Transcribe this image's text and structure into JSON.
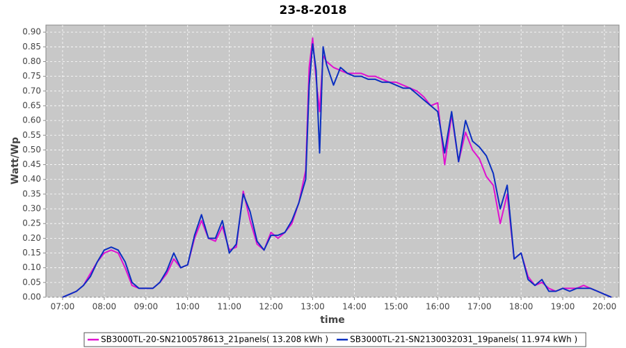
{
  "chart_data": {
    "type": "line",
    "title": "23-8-2018",
    "xlabel": "time",
    "ylabel": "Watt/Wp",
    "x": [
      "07:00",
      "07:10",
      "07:20",
      "07:30",
      "07:40",
      "07:50",
      "08:00",
      "08:10",
      "08:20",
      "08:30",
      "08:40",
      "08:50",
      "09:00",
      "09:10",
      "09:20",
      "09:30",
      "09:40",
      "09:50",
      "10:00",
      "10:10",
      "10:20",
      "10:30",
      "10:40",
      "10:50",
      "11:00",
      "11:10",
      "11:20",
      "11:30",
      "11:40",
      "11:50",
      "12:00",
      "12:10",
      "12:20",
      "12:30",
      "12:40",
      "12:50",
      "12:55",
      "13:00",
      "13:05",
      "13:10",
      "13:15",
      "13:20",
      "13:30",
      "13:40",
      "13:50",
      "14:00",
      "14:10",
      "14:20",
      "14:30",
      "14:40",
      "14:50",
      "15:00",
      "15:10",
      "15:20",
      "15:30",
      "15:40",
      "15:50",
      "16:00",
      "16:10",
      "16:20",
      "16:30",
      "16:40",
      "16:50",
      "17:00",
      "17:10",
      "17:20",
      "17:30",
      "17:40",
      "17:50",
      "18:00",
      "18:10",
      "18:20",
      "18:30",
      "18:40",
      "18:50",
      "19:00",
      "19:10",
      "19:20",
      "19:30",
      "19:40",
      "19:50",
      "20:00",
      "20:10"
    ],
    "series": [
      {
        "name": "SB3000TL-20-SN2100578613_21panels( 13.208 kWh )",
        "color": "#e010d0",
        "values": [
          0.0,
          0.01,
          0.02,
          0.04,
          0.08,
          0.12,
          0.15,
          0.16,
          0.15,
          0.1,
          0.04,
          0.03,
          0.03,
          0.03,
          0.05,
          0.08,
          0.13,
          0.1,
          0.11,
          0.2,
          0.26,
          0.2,
          0.19,
          0.24,
          0.16,
          0.17,
          0.36,
          0.26,
          0.18,
          0.16,
          0.22,
          0.2,
          0.22,
          0.25,
          0.32,
          0.43,
          0.78,
          0.88,
          0.74,
          0.63,
          0.82,
          0.8,
          0.78,
          0.77,
          0.76,
          0.76,
          0.76,
          0.75,
          0.75,
          0.74,
          0.73,
          0.73,
          0.72,
          0.71,
          0.7,
          0.68,
          0.65,
          0.66,
          0.45,
          0.62,
          0.46,
          0.56,
          0.5,
          0.47,
          0.41,
          0.38,
          0.25,
          0.35,
          0.13,
          0.15,
          0.07,
          0.04,
          0.05,
          0.03,
          0.02,
          0.03,
          0.03,
          0.03,
          0.04,
          0.03,
          0.02,
          0.01,
          0.0
        ]
      },
      {
        "name": "SB3000TL-21-SN2130032031_19panels( 11.974 kWh )",
        "color": "#0a2fc0",
        "values": [
          0.0,
          0.01,
          0.02,
          0.04,
          0.07,
          0.12,
          0.16,
          0.17,
          0.16,
          0.12,
          0.05,
          0.03,
          0.03,
          0.03,
          0.05,
          0.09,
          0.15,
          0.1,
          0.11,
          0.21,
          0.28,
          0.2,
          0.2,
          0.26,
          0.15,
          0.18,
          0.35,
          0.29,
          0.19,
          0.16,
          0.21,
          0.21,
          0.22,
          0.26,
          0.32,
          0.4,
          0.72,
          0.86,
          0.77,
          0.49,
          0.85,
          0.79,
          0.72,
          0.78,
          0.76,
          0.75,
          0.75,
          0.74,
          0.74,
          0.73,
          0.73,
          0.72,
          0.71,
          0.71,
          0.69,
          0.67,
          0.65,
          0.63,
          0.49,
          0.63,
          0.46,
          0.6,
          0.53,
          0.51,
          0.48,
          0.42,
          0.3,
          0.38,
          0.13,
          0.15,
          0.06,
          0.04,
          0.06,
          0.02,
          0.02,
          0.03,
          0.02,
          0.03,
          0.03,
          0.03,
          0.02,
          0.01,
          0.0
        ]
      }
    ],
    "xlim": [
      "06:36",
      "20:21"
    ],
    "xticks": [
      "07:00",
      "08:00",
      "09:00",
      "10:00",
      "11:00",
      "12:00",
      "13:00",
      "14:00",
      "15:00",
      "16:00",
      "17:00",
      "18:00",
      "19:00",
      "20:00"
    ],
    "ylim": [
      0,
      0.924
    ],
    "yticks": [
      {
        "value": 0,
        "label": "0.00"
      },
      {
        "value": 0.05,
        "label": "0.05"
      },
      {
        "value": 0.1,
        "label": "0.10"
      },
      {
        "value": 0.15,
        "label": "0.15"
      },
      {
        "value": 0.2,
        "label": "0.20"
      },
      {
        "value": 0.25,
        "label": "0.25"
      },
      {
        "value": 0.3,
        "label": "0.30"
      },
      {
        "value": 0.35,
        "label": "0.35"
      },
      {
        "value": 0.4,
        "label": "0.40"
      },
      {
        "value": 0.45,
        "label": "0.45"
      },
      {
        "value": 0.5,
        "label": "0.50"
      },
      {
        "value": 0.55,
        "label": "0.55"
      },
      {
        "value": 0.6,
        "label": "0.60"
      },
      {
        "value": 0.65,
        "label": "0.65"
      },
      {
        "value": 0.7,
        "label": "0.70"
      },
      {
        "value": 0.75,
        "label": "0.75"
      },
      {
        "value": 0.8,
        "label": "0.80"
      },
      {
        "value": 0.85,
        "label": "0.85"
      },
      {
        "value": 0.9,
        "label": "0.90"
      }
    ],
    "grid": true,
    "legend": "bottom"
  }
}
